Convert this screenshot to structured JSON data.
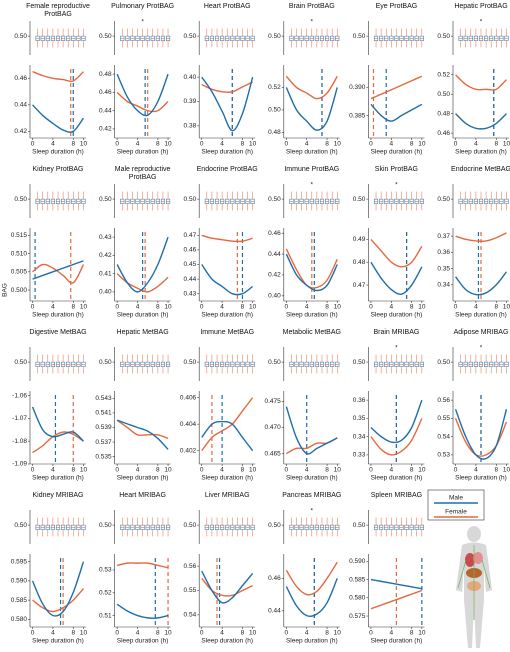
{
  "chart_data": {
    "type": "line",
    "x_label": "Sleep duration (h)",
    "y_label": "BAG",
    "x": [
      0,
      2,
      4,
      6,
      8,
      10
    ],
    "xlim": [
      -0.5,
      10.5
    ],
    "xticks": [
      0,
      4,
      8,
      10
    ],
    "series": [
      {
        "name": "Male",
        "color": "#1f6ea8"
      },
      {
        "name": "Female",
        "color": "#e5683f"
      }
    ],
    "boxplot": {
      "x": [
        1,
        2,
        3,
        4,
        5,
        6,
        7,
        8,
        9,
        10
      ],
      "ylim": [
        0.25,
        0.7
      ],
      "yticks": [
        {
          "value": 0.5,
          "label": "0.50"
        }
      ],
      "low": 0.35,
      "q1": 0.44,
      "median": 0.47,
      "q3": 0.5,
      "high": 0.6
    },
    "panels": [
      {
        "title": "Female reproductive ProtBAG",
        "ylim": [
          0.415,
          0.47
        ],
        "yticks": [
          0.42,
          0.44,
          0.46
        ],
        "male": [
          0.44,
          0.432,
          0.426,
          0.421,
          0.42,
          0.43
        ],
        "female": [
          0.465,
          0.462,
          0.46,
          0.459,
          0.458,
          0.465
        ],
        "male_opt": 8,
        "female_opt": 7.5
      },
      {
        "title": "Pulmonary ProtBAG",
        "note": "*",
        "ylim": [
          0.41,
          0.49
        ],
        "yticks": [
          0.42,
          0.44,
          0.46,
          0.48
        ],
        "male": [
          0.48,
          0.455,
          0.44,
          0.435,
          0.45,
          0.48
        ],
        "female": [
          0.46,
          0.45,
          0.445,
          0.44,
          0.44,
          0.45
        ],
        "male_opt": 5.5,
        "female_opt": 6
      },
      {
        "title": "Heart ProtBAG",
        "ylim": [
          0.375,
          0.405
        ],
        "yticks": [
          0.38,
          0.39,
          {
            "value": 0.4,
            "label": "0.40"
          }
        ],
        "male": [
          0.4,
          0.394,
          0.386,
          0.378,
          0.385,
          0.4
        ],
        "female": [
          0.397,
          0.395,
          0.394,
          0.394,
          0.396,
          0.398
        ],
        "male_opt": 6,
        "female_opt": 6
      },
      {
        "title": "Brain ProtBAG",
        "note": "*",
        "ylim": [
          0.475,
          0.54
        ],
        "yticks": [
          0.48,
          {
            "value": 0.5,
            "label": "0.50"
          },
          0.52
        ],
        "male": [
          0.52,
          0.5,
          0.49,
          0.482,
          0.49,
          0.52
        ],
        "female": [
          0.53,
          0.52,
          0.515,
          0.51,
          0.515,
          0.53
        ],
        "male_opt": 7,
        "female_opt": 7
      },
      {
        "title": "Eye ProtBAG",
        "ylim": [
          0.381,
          0.394
        ],
        "yticks": [
          0.385,
          {
            "value": 0.39,
            "label": "0.390"
          }
        ],
        "male": [
          0.387,
          0.385,
          0.384,
          0.385,
          0.386,
          0.387
        ],
        "female": [
          0.388,
          0.3888,
          0.3896,
          0.3904,
          0.3912,
          0.392
        ],
        "male_opt": 3,
        "female_opt": 0.5
      },
      {
        "title": "Hepatic ProtBAG",
        "note": "*",
        "ylim": [
          0.455,
          0.53
        ],
        "yticks": [
          0.46,
          0.48,
          {
            "value": 0.5,
            "label": "0.50"
          },
          0.52
        ],
        "male": [
          0.48,
          0.47,
          0.465,
          0.465,
          0.47,
          0.48
        ],
        "female": [
          0.52,
          0.51,
          0.505,
          0.505,
          0.505,
          0.515
        ],
        "male_opt": 7.5,
        "female_opt": 7.5
      },
      {
        "title": "Kidney ProtBAG",
        "ylim": [
          0.497,
          0.517
        ],
        "yticks": [
          {
            "value": 0.5,
            "label": "0.500"
          },
          0.505,
          {
            "value": 0.51,
            "label": "0.510"
          },
          0.515
        ],
        "male": [
          0.503,
          0.504,
          0.505,
          0.506,
          0.507,
          0.508
        ],
        "female": [
          0.505,
          0.507,
          0.506,
          0.504,
          0.502,
          0.507
        ],
        "male_opt": 0.5,
        "female_opt": 7.5
      },
      {
        "title": "Male reproductive ProtBAG",
        "ylim": [
          0.395,
          0.435
        ],
        "yticks": [
          {
            "value": 0.4,
            "label": "0.40"
          },
          0.41,
          0.42,
          0.43
        ],
        "male": [
          0.415,
          0.405,
          0.4,
          0.405,
          0.415,
          0.43
        ],
        "female": [
          0.41,
          0.405,
          0.402,
          0.4,
          0.403,
          0.408
        ],
        "male_opt": 5,
        "female_opt": 5.5
      },
      {
        "title": "Endocrine ProtBAG",
        "ylim": [
          0.425,
          0.475
        ],
        "yticks": [
          0.43,
          0.44,
          0.45,
          0.46,
          0.47
        ],
        "male": [
          0.45,
          0.44,
          0.435,
          0.43,
          0.43,
          0.435
        ],
        "female": [
          0.47,
          0.468,
          0.467,
          0.466,
          0.466,
          0.468
        ],
        "male_opt": 8,
        "female_opt": 7
      },
      {
        "title": "Immune ProtBAG",
        "note": "*",
        "ylim": [
          0.395,
          0.465
        ],
        "yticks": [
          {
            "value": 0.4,
            "label": "0.40"
          },
          0.42,
          0.44,
          0.46
        ],
        "male": [
          0.44,
          0.42,
          0.41,
          0.405,
          0.41,
          0.43
        ],
        "female": [
          0.445,
          0.425,
          0.41,
          0.408,
          0.415,
          0.435
        ],
        "male_opt": 5.5,
        "female_opt": 5
      },
      {
        "title": "Skin ProtBAG",
        "note": "*",
        "ylim": [
          0.463,
          0.495
        ],
        "yticks": [
          0.47,
          0.48,
          0.49
        ],
        "male": [
          0.48,
          0.473,
          0.468,
          0.466,
          0.47,
          0.478
        ],
        "female": [
          0.49,
          0.485,
          0.48,
          0.478,
          0.48,
          0.487
        ],
        "male_opt": 7,
        "female_opt": 7
      },
      {
        "title": "Endocrine MetBAG",
        "ylim": [
          0.33,
          0.375
        ],
        "yticks": [
          0.34,
          0.35,
          0.36,
          0.37
        ],
        "male": [
          0.345,
          0.337,
          0.334,
          0.335,
          0.34,
          0.348
        ],
        "female": [
          0.37,
          0.368,
          0.367,
          0.367,
          0.369,
          0.372
        ],
        "male_opt": 4.5,
        "female_opt": 5
      },
      {
        "title": "Digestive MetBAG",
        "ylim": [
          -1.09,
          -1.058
        ],
        "yticks": [
          -1.09,
          -1.08,
          -1.07,
          -1.06
        ],
        "male": [
          -1.065,
          -1.075,
          -1.078,
          -1.077,
          -1.076,
          -1.08
        ],
        "female": [
          -1.085,
          -1.082,
          -1.078,
          -1.076,
          -1.077,
          -1.08
        ],
        "male_opt": 4.5,
        "female_opt": 8
      },
      {
        "title": "Hepatic MetBAG",
        "ylim": [
          0.534,
          0.544
        ],
        "yticks": [
          0.535,
          0.537,
          0.539,
          0.541,
          0.543
        ],
        "male": [
          0.54,
          0.5395,
          0.539,
          0.5385,
          0.5375,
          0.536
        ],
        "female": [
          0.54,
          0.539,
          0.538,
          0.538,
          0.538,
          0.5375
        ]
      },
      {
        "title": "Immune MetBAG",
        "ylim": [
          0.401,
          0.4065
        ],
        "yticks": [
          0.402,
          0.404,
          0.406
        ],
        "male": [
          0.403,
          0.404,
          0.4042,
          0.404,
          0.403,
          0.402
        ],
        "female": [
          0.402,
          0.403,
          0.4035,
          0.404,
          0.405,
          0.406
        ],
        "male_opt": 4,
        "female_opt": 2
      },
      {
        "title": "Metabolic MetBAG",
        "ylim": [
          0.463,
          0.477
        ],
        "yticks": [
          0.465,
          {
            "value": 0.47,
            "label": "0.470"
          },
          0.475
        ],
        "male": [
          0.474,
          0.468,
          0.465,
          0.466,
          0.467,
          0.468
        ],
        "female": [
          0.465,
          0.466,
          0.466,
          0.467,
          0.467,
          0.468
        ],
        "male_opt": 4
      },
      {
        "title": "Brain MRIBAG",
        "note": "*",
        "ylim": [
          0.325,
          0.365
        ],
        "yticks": [
          0.33,
          0.34,
          0.35,
          0.36
        ],
        "male": [
          0.345,
          0.34,
          0.337,
          0.338,
          0.345,
          0.36
        ],
        "female": [
          0.34,
          0.333,
          0.33,
          0.332,
          0.338,
          0.35
        ],
        "male_opt": 5,
        "female_opt": 5
      },
      {
        "title": "Adipose MRIBAG",
        "note": "*",
        "ylim": [
          0.525,
          0.565
        ],
        "yticks": [
          0.53,
          0.54,
          0.55,
          0.56
        ],
        "male": [
          0.555,
          0.54,
          0.53,
          0.528,
          0.535,
          0.555
        ],
        "female": [
          0.55,
          0.537,
          0.53,
          0.53,
          0.535,
          0.548
        ],
        "male_opt": 5,
        "female_opt": 5
      },
      {
        "title": "Kidney MRIBAG",
        "ylim": [
          0.578,
          0.597
        ],
        "yticks": [
          {
            "value": 0.58,
            "label": "0.580"
          },
          0.585,
          {
            "value": 0.59,
            "label": "0.590"
          },
          0.595
        ],
        "male": [
          0.59,
          0.584,
          0.581,
          0.582,
          0.587,
          0.595
        ],
        "female": [
          0.585,
          0.583,
          0.582,
          0.583,
          0.585,
          0.588
        ],
        "male_opt": 5.5,
        "female_opt": 6
      },
      {
        "title": "Heart MRIBAG",
        "ylim": [
          0.505,
          0.537
        ],
        "yticks": [
          0.51,
          0.52,
          0.53
        ],
        "male": [
          0.515,
          0.512,
          0.51,
          0.509,
          0.509,
          0.51
        ],
        "female": [
          0.532,
          0.533,
          0.533,
          0.533,
          0.532,
          0.531
        ],
        "male_opt": 7.5,
        "female_opt": 10
      },
      {
        "title": "Liver MRIBAG",
        "ylim": [
          0.535,
          0.565
        ],
        "yticks": [
          0.54,
          0.55,
          0.56
        ],
        "male": [
          0.558,
          0.55,
          0.545,
          0.547,
          0.552,
          0.557
        ],
        "female": [
          0.555,
          0.55,
          0.548,
          0.548,
          0.55,
          0.552
        ],
        "male_opt": 3.5,
        "female_opt": 3
      },
      {
        "title": "Pancreas MRIBAG",
        "note": "*",
        "ylim": [
          0.43,
          0.475
        ],
        "yticks": [
          0.44,
          0.46
        ],
        "male": [
          0.455,
          0.443,
          0.437,
          0.438,
          0.445,
          0.46
        ],
        "female": [
          0.465,
          0.455,
          0.45,
          0.452,
          0.46,
          0.47
        ],
        "male_opt": 5.5,
        "female_opt": 5.5
      },
      {
        "title": "Spleen MRIBAG",
        "ylim": [
          0.572,
          0.592
        ],
        "yticks": [
          0.575,
          {
            "value": 0.58,
            "label": "0.580"
          },
          0.585,
          {
            "value": 0.59,
            "label": "0.590"
          }
        ],
        "male": [
          0.585,
          0.5845,
          0.584,
          0.5835,
          0.583,
          0.5825
        ],
        "female": [
          0.577,
          0.578,
          0.579,
          0.58,
          0.581,
          0.582
        ],
        "male_opt": 10,
        "female_opt": 5
      }
    ]
  }
}
